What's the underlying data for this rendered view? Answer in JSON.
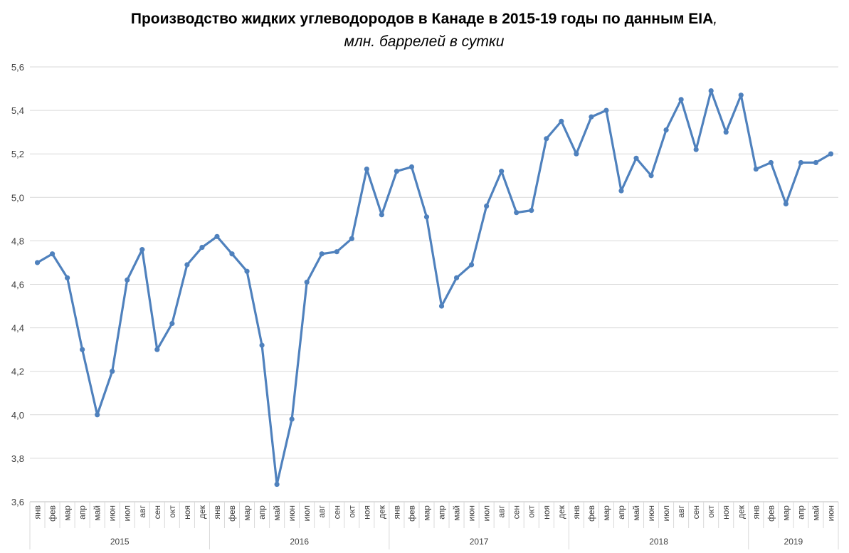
{
  "chart_data": {
    "type": "line",
    "title": "Производство жидких углеводородов в Канаде в 2015-19 годы по данным EIA",
    "title_suffix": ",",
    "subtitle": "млн. баррелей в сутки",
    "xlabel": "",
    "ylabel": "",
    "ylim": [
      3.6,
      5.6
    ],
    "y_ticks": [
      "3,6",
      "3,8",
      "4,0",
      "4,2",
      "4,4",
      "4,6",
      "4,8",
      "5,0",
      "5,2",
      "5,4",
      "5,6"
    ],
    "grid": true,
    "legend": "none",
    "series_color": "#4F81BD",
    "years": [
      {
        "label": "2015",
        "months": 12
      },
      {
        "label": "2016",
        "months": 12
      },
      {
        "label": "2017",
        "months": 12
      },
      {
        "label": "2018",
        "months": 12
      },
      {
        "label": "2019",
        "months": 6
      }
    ],
    "categories": [
      "янв",
      "фев",
      "мар",
      "апр",
      "май",
      "июн",
      "июл",
      "авг",
      "сен",
      "окт",
      "ноя",
      "дек",
      "янв",
      "фев",
      "мар",
      "апр",
      "май",
      "июн",
      "июл",
      "авг",
      "сен",
      "окт",
      "ноя",
      "дек",
      "янв",
      "фев",
      "мар",
      "апр",
      "май",
      "июн",
      "июл",
      "авг",
      "сен",
      "окт",
      "ноя",
      "дек",
      "янв",
      "фев",
      "мар",
      "апр",
      "май",
      "июн",
      "июл",
      "авг",
      "сен",
      "окт",
      "ноя",
      "дек",
      "янв",
      "фев",
      "мар",
      "апр",
      "май",
      "июн"
    ],
    "series": [
      {
        "values": [
          4.7,
          4.74,
          4.63,
          4.3,
          4.0,
          4.2,
          4.62,
          4.76,
          4.3,
          4.42,
          4.69,
          4.77,
          4.82,
          4.74,
          4.66,
          4.32,
          3.68,
          3.98,
          4.61,
          4.74,
          4.75,
          4.81,
          5.13,
          4.92,
          5.12,
          5.14,
          4.91,
          4.5,
          4.63,
          4.69,
          4.96,
          5.12,
          4.93,
          4.94,
          5.27,
          5.35,
          5.2,
          5.37,
          5.4,
          5.03,
          5.18,
          5.1,
          5.31,
          5.45,
          5.22,
          5.49,
          5.3,
          5.47,
          5.13,
          5.16,
          4.97,
          5.16,
          5.16,
          5.2
        ]
      }
    ]
  }
}
